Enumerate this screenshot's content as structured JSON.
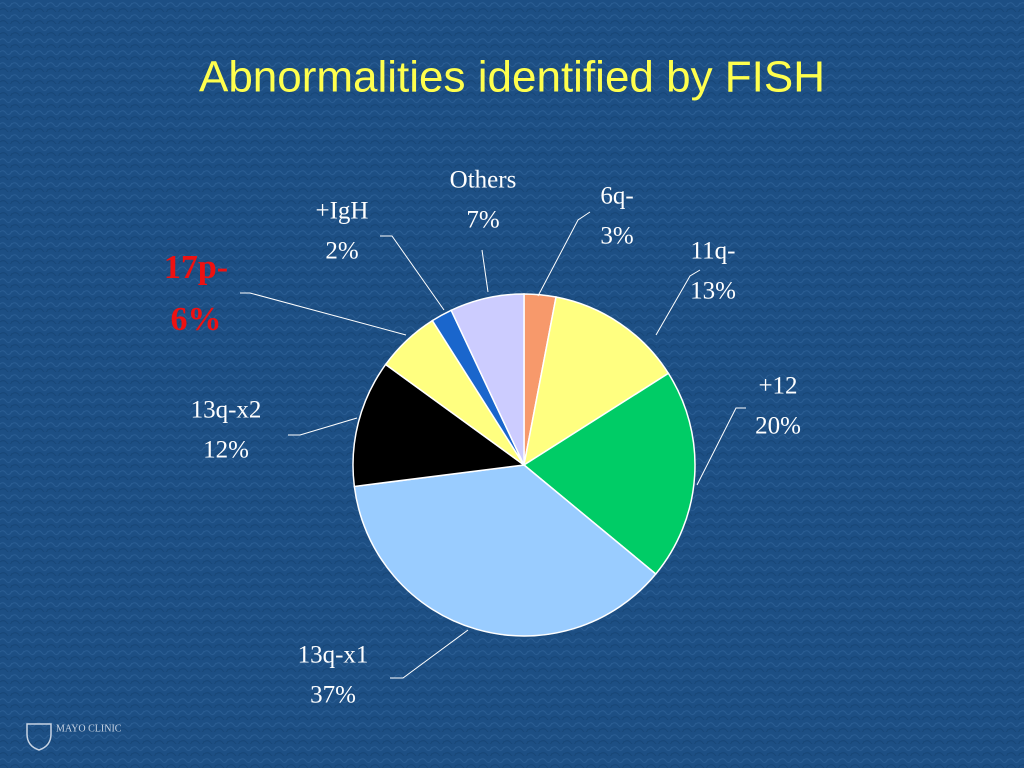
{
  "chart_data": {
    "type": "pie",
    "title": "Abnormalities identified by FISH",
    "categories": [
      "6q-",
      "11q-",
      "+12",
      "13q-x1",
      "13q-x2",
      "17p-",
      "+IgH",
      "Others"
    ],
    "values": [
      3,
      13,
      20,
      37,
      12,
      6,
      2,
      7
    ],
    "value_labels": [
      "3%",
      "13%",
      "20%",
      "37%",
      "12%",
      "6%",
      "2%",
      "7%"
    ],
    "colors": [
      "#f7996b",
      "#ffff80",
      "#00cc66",
      "#99ccff",
      "#000000",
      "#ffff80",
      "#1a66cc",
      "#ccccff"
    ],
    "label_colors": [
      "#ffffff",
      "#ffffff",
      "#ffffff",
      "#ffffff",
      "#ffffff",
      "#ee1111",
      "#ffffff",
      "#ffffff"
    ],
    "footer": "MAYO CLINIC"
  }
}
